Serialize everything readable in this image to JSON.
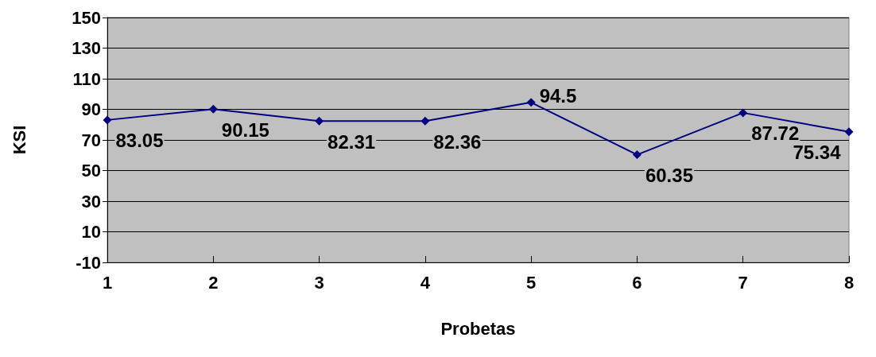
{
  "chart_data": {
    "type": "line",
    "xlabel": "Probetas",
    "ylabel": "KSI",
    "x": [
      1,
      2,
      3,
      4,
      5,
      6,
      7,
      8
    ],
    "series": [
      {
        "color": "#000080",
        "values": [
          83.05,
          90.15,
          82.31,
          82.36,
          94.5,
          60.35,
          87.72,
          75.34
        ]
      }
    ],
    "xlim": [
      1,
      8
    ],
    "xticks": [
      1,
      2,
      3,
      4,
      5,
      6,
      7,
      8
    ],
    "ylim": [
      -10,
      150
    ],
    "yticks": [
      -10,
      10,
      30,
      50,
      70,
      90,
      110,
      130,
      150
    ],
    "grid": "y",
    "marker": "diamond",
    "line_style": "solid",
    "data_labels": true
  }
}
